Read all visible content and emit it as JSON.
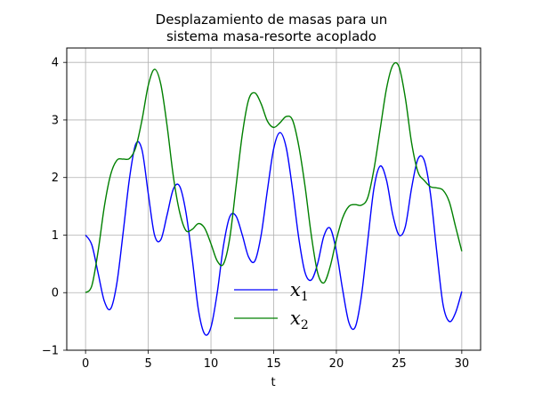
{
  "chart_data": {
    "type": "line",
    "title_lines": [
      "Desplazamiento de masas para un",
      "sistema masa-resorte acoplado"
    ],
    "xlabel": "t",
    "ylabel": "",
    "xlim": [
      -1.5,
      31.5
    ],
    "ylim": [
      -1,
      4.25
    ],
    "xticks": [
      0,
      5,
      10,
      15,
      20,
      25,
      30
    ],
    "yticks": [
      -1,
      0,
      1,
      2,
      3,
      4
    ],
    "grid": true,
    "legend_position": "lower-center",
    "series": [
      {
        "name": "x",
        "name_sub": "1",
        "color": "#0000ff",
        "x": [
          0,
          0.5,
          1,
          1.5,
          2,
          2.5,
          3,
          3.5,
          4,
          4.5,
          5,
          5.5,
          6,
          6.5,
          7,
          7.5,
          8,
          8.5,
          9,
          9.5,
          10,
          10.5,
          11,
          11.5,
          12,
          12.5,
          13,
          13.5,
          14,
          14.5,
          15,
          15.5,
          16,
          16.5,
          17,
          17.5,
          18,
          18.5,
          19,
          19.5,
          20,
          20.5,
          21,
          21.5,
          22,
          22.5,
          23,
          23.5,
          24,
          24.5,
          25,
          25.5,
          26,
          26.5,
          27,
          27.5,
          28,
          28.5,
          29,
          29.5,
          30
        ],
        "y": [
          1.0,
          0.83,
          0.34,
          -0.15,
          -0.28,
          0.17,
          1.05,
          1.98,
          2.58,
          2.48,
          1.72,
          1.0,
          0.92,
          1.35,
          1.8,
          1.85,
          1.4,
          0.6,
          -0.3,
          -0.72,
          -0.6,
          0.0,
          0.82,
          1.32,
          1.33,
          1.0,
          0.62,
          0.55,
          1.0,
          1.78,
          2.5,
          2.78,
          2.52,
          1.8,
          0.95,
          0.35,
          0.22,
          0.5,
          0.98,
          1.12,
          0.72,
          0.05,
          -0.52,
          -0.6,
          -0.05,
          0.9,
          1.82,
          2.2,
          1.95,
          1.35,
          1.0,
          1.15,
          1.82,
          2.32,
          2.3,
          1.72,
          0.72,
          -0.2,
          -0.5,
          -0.35,
          0.02
        ]
      },
      {
        "name": "x",
        "name_sub": "2",
        "color": "#008000",
        "x": [
          0,
          0.5,
          1,
          1.5,
          2,
          2.5,
          3,
          3.5,
          4,
          4.5,
          5,
          5.5,
          6,
          6.5,
          7,
          7.5,
          8,
          8.5,
          9,
          9.5,
          10,
          10.5,
          11,
          11.5,
          12,
          12.5,
          13,
          13.5,
          14,
          14.5,
          15,
          15.5,
          16,
          16.5,
          17,
          17.5,
          18,
          18.5,
          19,
          19.5,
          20,
          20.5,
          21,
          21.5,
          22,
          22.5,
          23,
          23.5,
          24,
          24.5,
          25,
          25.5,
          26,
          26.5,
          27,
          27.5,
          28,
          28.5,
          29,
          29.5,
          30
        ],
        "y": [
          0.0,
          0.12,
          0.72,
          1.5,
          2.05,
          2.3,
          2.32,
          2.33,
          2.52,
          3.0,
          3.6,
          3.88,
          3.62,
          2.9,
          2.02,
          1.4,
          1.08,
          1.1,
          1.2,
          1.12,
          0.85,
          0.55,
          0.5,
          0.95,
          1.85,
          2.75,
          3.35,
          3.47,
          3.28,
          2.98,
          2.87,
          2.95,
          3.06,
          3.0,
          2.55,
          1.85,
          1.0,
          0.35,
          0.17,
          0.45,
          0.92,
          1.3,
          1.5,
          1.53,
          1.52,
          1.65,
          2.15,
          2.85,
          3.55,
          3.95,
          3.92,
          3.38,
          2.6,
          2.1,
          1.95,
          1.84,
          1.82,
          1.78,
          1.58,
          1.15,
          0.72
        ]
      }
    ]
  }
}
